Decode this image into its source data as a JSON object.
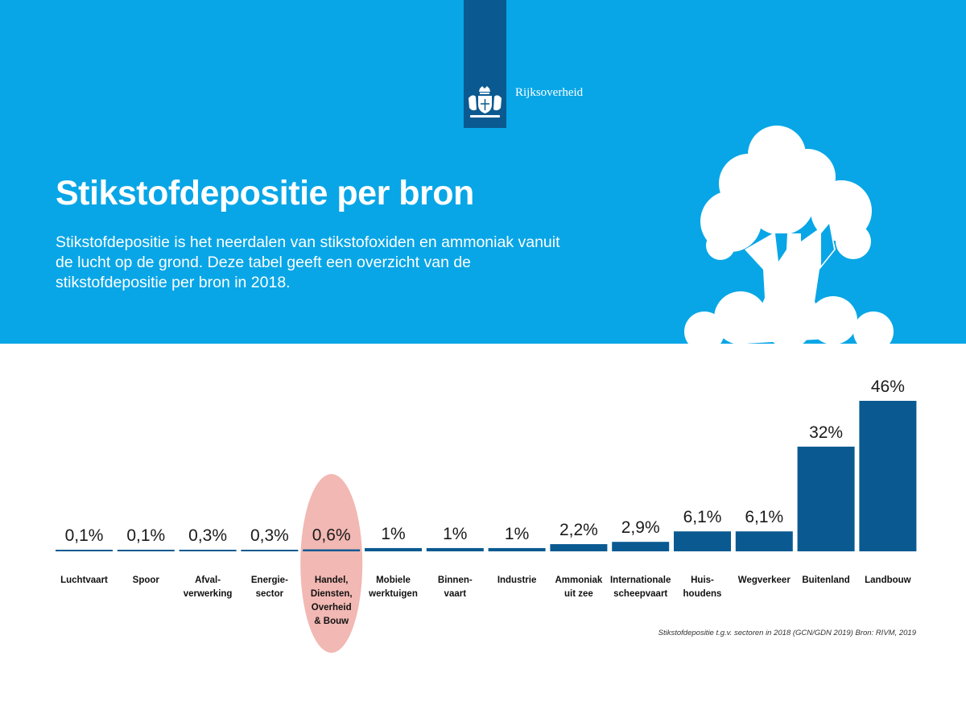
{
  "header": {
    "brand": "Rijksoverheid",
    "title": "Stikstofdepositie per bron",
    "subtitle": "Stikstofdepositie is het neerdalen van stikstofoxiden en ammoniak vanuit de lucht op de grond. Deze tabel geeft een overzicht van de stikstofdepositie per bron in 2018."
  },
  "colors": {
    "banner": "#08a6e6",
    "logo_bar": "#0a5a91",
    "bar": "#0a5a91",
    "highlight": "#f2b8b3"
  },
  "chart_data": {
    "type": "bar",
    "title": "Stikstofdepositie per bron",
    "categories": [
      "Luchtvaart",
      "Spoor",
      "Afval-\nverwerking",
      "Energie-\nsector",
      "Handel,\nDiensten,\nOverheid\n& Bouw",
      "Mobiele\nwerktuigen",
      "Binnen-\nvaart",
      "Industrie",
      "Ammoniak\nuit zee",
      "Internationale\nscheepvaart",
      "Huis-\nhoudens",
      "Wegverkeer",
      "Buitenland",
      "Landbouw"
    ],
    "values": [
      0.1,
      0.1,
      0.3,
      0.3,
      0.6,
      1,
      1,
      1,
      2.2,
      2.9,
      6.1,
      6.1,
      32,
      46
    ],
    "value_labels": [
      "0,1%",
      "0,1%",
      "0,3%",
      "0,3%",
      "0,6%",
      "1%",
      "1%",
      "1%",
      "2,2%",
      "2,9%",
      "6,1%",
      "6,1%",
      "32%",
      "46%"
    ],
    "unit": "%",
    "highlighted_category": "Handel,\nDiensten,\nOverheid\n& Bouw",
    "source": "Stikstofdepositie t.g.v. sectoren in 2018 (GCN/GDN 2019) Bron: RIVM, 2019",
    "grid": false
  }
}
